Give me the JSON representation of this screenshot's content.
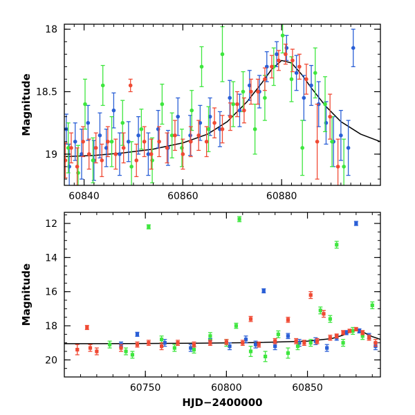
{
  "chart_data": [
    {
      "type": "scatter",
      "title": "",
      "xlabel": "",
      "ylabel": "Magnitude",
      "xlim": [
        60836,
        60900
      ],
      "ylim": [
        19.25,
        17.96
      ],
      "y_inverted": true,
      "x_ticks": [
        60840,
        60860,
        60880
      ],
      "x_tick_labels": [
        "60840",
        "60860",
        "60880"
      ],
      "y_ticks": [
        18,
        18.5,
        19
      ],
      "y_tick_labels": [
        "18",
        "18.5",
        "19"
      ],
      "grid": false,
      "legend": "none",
      "series": [
        {
          "color": "#2a5fd6",
          "points": [
            [
              60836.4,
              18.8,
              0.12
            ],
            [
              60837.0,
              19.1,
              0.18
            ],
            [
              60838.2,
              18.9,
              0.15
            ],
            [
              60839.5,
              19.0,
              0.2
            ],
            [
              60840.8,
              18.75,
              0.14
            ],
            [
              60842.0,
              19.05,
              0.16
            ],
            [
              60843.2,
              18.85,
              0.18
            ],
            [
              60844.5,
              18.95,
              0.15
            ],
            [
              60846.0,
              18.65,
              0.14
            ],
            [
              60847.2,
              19.0,
              0.17
            ],
            [
              60849.0,
              18.9,
              0.16
            ],
            [
              60851.0,
              18.85,
              0.15
            ],
            [
              60853.0,
              19.0,
              0.17
            ],
            [
              60855.0,
              18.8,
              0.15
            ],
            [
              60857.0,
              18.95,
              0.14
            ],
            [
              60859.0,
              18.7,
              0.15
            ],
            [
              60861.5,
              18.85,
              0.16
            ],
            [
              60863.5,
              18.75,
              0.14
            ],
            [
              60865.5,
              18.7,
              0.15
            ],
            [
              60867.5,
              18.8,
              0.14
            ],
            [
              60869.5,
              18.55,
              0.14
            ],
            [
              60871.5,
              18.65,
              0.13
            ],
            [
              60873.5,
              18.45,
              0.12
            ],
            [
              60875.5,
              18.5,
              0.13
            ],
            [
              60877.0,
              18.3,
              0.12
            ],
            [
              60879.0,
              18.2,
              0.1
            ],
            [
              60881.0,
              18.15,
              0.1
            ],
            [
              60883.0,
              18.35,
              0.14
            ],
            [
              60884.5,
              18.55,
              0.18
            ],
            [
              60886.0,
              18.45,
              0.16
            ],
            [
              60887.5,
              18.6,
              0.18
            ],
            [
              60889.0,
              18.75,
              0.17
            ],
            [
              60890.5,
              18.9,
              0.2
            ],
            [
              60892.0,
              18.85,
              0.2
            ],
            [
              60893.5,
              18.95,
              0.22
            ],
            [
              60894.5,
              18.15,
              0.15
            ]
          ]
        },
        {
          "color": "#3ee63e",
          "points": [
            [
              60836.8,
              18.95,
              0.2
            ],
            [
              60838.8,
              19.15,
              0.22
            ],
            [
              60840.2,
              18.6,
              0.2
            ],
            [
              60841.8,
              19.05,
              0.18
            ],
            [
              60843.8,
              18.45,
              0.16
            ],
            [
              60845.6,
              18.9,
              0.2
            ],
            [
              60847.8,
              18.75,
              0.18
            ],
            [
              60849.6,
              19.1,
              0.2
            ],
            [
              60851.6,
              18.8,
              0.16
            ],
            [
              60853.8,
              19.05,
              0.18
            ],
            [
              60855.8,
              18.6,
              0.16
            ],
            [
              60857.8,
              18.85,
              0.18
            ],
            [
              60859.8,
              18.95,
              0.15
            ],
            [
              60861.8,
              18.65,
              0.16
            ],
            [
              60863.8,
              18.3,
              0.16
            ],
            [
              60865.2,
              18.8,
              0.18
            ],
            [
              60868.0,
              18.2,
              0.22
            ],
            [
              60870.2,
              18.6,
              0.18
            ],
            [
              60872.2,
              18.5,
              0.16
            ],
            [
              60874.6,
              18.8,
              0.2
            ],
            [
              60876.6,
              18.55,
              0.18
            ],
            [
              60878.4,
              18.3,
              0.15
            ],
            [
              60880.2,
              18.05,
              0.14
            ],
            [
              60882.0,
              18.4,
              0.18
            ],
            [
              60884.2,
              18.95,
              0.22
            ],
            [
              60886.8,
              18.35,
              0.2
            ],
            [
              60888.8,
              18.6,
              0.22
            ],
            [
              60890.2,
              18.9,
              0.2
            ],
            [
              60892.6,
              19.1,
              0.22
            ]
          ]
        },
        {
          "color": "#f04a34",
          "points": [
            [
              60836.2,
              19.05,
              0.14
            ],
            [
              60837.4,
              18.95,
              0.12
            ],
            [
              60838.6,
              19.1,
              0.15
            ],
            [
              60839.8,
              18.9,
              0.12
            ],
            [
              60841.0,
              19.0,
              0.12
            ],
            [
              60842.4,
              18.95,
              0.12
            ],
            [
              60843.6,
              19.05,
              0.13
            ],
            [
              60844.8,
              18.9,
              0.12
            ],
            [
              60846.4,
              19.0,
              0.12
            ],
            [
              60848.0,
              18.95,
              0.12
            ],
            [
              60849.4,
              18.45,
              0.05
            ],
            [
              60850.6,
              19.05,
              0.13
            ],
            [
              60852.2,
              18.9,
              0.12
            ],
            [
              60853.6,
              19.0,
              0.12
            ],
            [
              60855.2,
              18.9,
              0.12
            ],
            [
              60856.8,
              18.95,
              0.12
            ],
            [
              60858.4,
              18.85,
              0.12
            ],
            [
              60860.0,
              19.0,
              0.12
            ],
            [
              60861.6,
              18.9,
              0.12
            ],
            [
              60863.2,
              18.85,
              0.12
            ],
            [
              60864.8,
              18.9,
              0.12
            ],
            [
              60866.4,
              18.75,
              0.12
            ],
            [
              60868.0,
              18.8,
              0.11
            ],
            [
              60869.6,
              18.7,
              0.11
            ],
            [
              60871.0,
              18.6,
              0.1
            ],
            [
              60872.4,
              18.65,
              0.1
            ],
            [
              60873.8,
              18.5,
              0.1
            ],
            [
              60875.2,
              18.5,
              0.1
            ],
            [
              60876.6,
              18.4,
              0.09
            ],
            [
              60878.0,
              18.3,
              0.09
            ],
            [
              60879.4,
              18.25,
              0.08
            ],
            [
              60880.8,
              18.2,
              0.08
            ],
            [
              60882.2,
              18.25,
              0.09
            ],
            [
              60883.6,
              18.3,
              0.1
            ],
            [
              60885.0,
              18.4,
              0.12
            ],
            [
              60887.2,
              18.9,
              0.3
            ],
            [
              60889.8,
              18.7,
              0.18
            ],
            [
              60891.4,
              19.1,
              0.22
            ]
          ]
        }
      ],
      "model_curve": [
        [
          60836,
          19.02
        ],
        [
          60842,
          19.01
        ],
        [
          60848,
          18.99
        ],
        [
          60854,
          18.96
        ],
        [
          60860,
          18.91
        ],
        [
          60865,
          18.84
        ],
        [
          60869,
          18.74
        ],
        [
          60873,
          18.58
        ],
        [
          60876,
          18.43
        ],
        [
          60878,
          18.32
        ],
        [
          60880,
          18.25
        ],
        [
          60882,
          18.27
        ],
        [
          60884,
          18.36
        ],
        [
          60886,
          18.47
        ],
        [
          60889,
          18.62
        ],
        [
          60892,
          18.74
        ],
        [
          60896,
          18.84
        ],
        [
          60900,
          18.9
        ]
      ]
    },
    {
      "type": "scatter",
      "title": "",
      "xlabel": "HJD−2400000",
      "ylabel": "Magnitude",
      "xlim": [
        60700,
        60895
      ],
      "ylim": [
        21.0,
        11.35
      ],
      "y_inverted": true,
      "x_ticks": [
        60750,
        60800,
        60850
      ],
      "x_tick_labels": [
        "60750",
        "60800",
        "60850"
      ],
      "y_ticks": [
        12,
        14,
        16,
        18,
        20
      ],
      "y_tick_labels": [
        "12",
        "14",
        "16",
        "18",
        "20"
      ],
      "grid": false,
      "legend": "none",
      "series": [
        {
          "color": "#2a5fd6",
          "points": [
            [
              60735,
              19.1,
              0.15
            ],
            [
              60745,
              18.5,
              0.12
            ],
            [
              60762,
              19.0,
              0.2
            ],
            [
              60778,
              19.3,
              0.2
            ],
            [
              60790,
              18.9,
              0.15
            ],
            [
              60802,
              19.2,
              0.2
            ],
            [
              60812,
              18.8,
              0.2
            ],
            [
              60818,
              19.1,
              0.2
            ],
            [
              60823,
              15.95,
              0.12
            ],
            [
              60830,
              19.2,
              0.2
            ],
            [
              60838,
              18.6,
              0.15
            ],
            [
              60845,
              19.0,
              0.2
            ],
            [
              60855,
              18.9,
              0.2
            ],
            [
              60862,
              19.3,
              0.2
            ],
            [
              60868,
              18.7,
              0.15
            ],
            [
              60874,
              18.4,
              0.12
            ],
            [
              60880,
              12.0,
              0.12
            ],
            [
              60882,
              18.3,
              0.12
            ],
            [
              60888,
              18.6,
              0.15
            ],
            [
              60892,
              19.2,
              0.2
            ]
          ]
        },
        {
          "color": "#3ee63e",
          "points": [
            [
              60728,
              19.1,
              0.2
            ],
            [
              60738,
              19.5,
              0.2
            ],
            [
              60742,
              19.7,
              0.2
            ],
            [
              60752,
              12.2,
              0.12
            ],
            [
              60760,
              18.8,
              0.2
            ],
            [
              60768,
              19.3,
              0.2
            ],
            [
              60780,
              19.4,
              0.2
            ],
            [
              60790,
              18.6,
              0.2
            ],
            [
              60800,
              19.0,
              0.2
            ],
            [
              60806,
              18.0,
              0.15
            ],
            [
              60808,
              11.75,
              0.15
            ],
            [
              60815,
              19.5,
              0.3
            ],
            [
              60824,
              19.8,
              0.3
            ],
            [
              60832,
              18.5,
              0.2
            ],
            [
              60838,
              19.6,
              0.3
            ],
            [
              60844,
              19.2,
              0.2
            ],
            [
              60852,
              19.0,
              0.2
            ],
            [
              60858,
              17.1,
              0.2
            ],
            [
              60864,
              17.6,
              0.2
            ],
            [
              60868,
              13.25,
              0.2
            ],
            [
              60872,
              19.0,
              0.2
            ],
            [
              60878,
              18.3,
              0.2
            ],
            [
              60884,
              18.6,
              0.2
            ],
            [
              60890,
              16.8,
              0.2
            ]
          ]
        },
        {
          "color": "#f04a34",
          "points": [
            [
              60708,
              19.4,
              0.3
            ],
            [
              60714,
              18.1,
              0.12
            ],
            [
              60716,
              19.3,
              0.2
            ],
            [
              60720,
              19.5,
              0.2
            ],
            [
              60735,
              19.3,
              0.2
            ],
            [
              60745,
              19.1,
              0.15
            ],
            [
              60752,
              19.0,
              0.15
            ],
            [
              60760,
              19.2,
              0.2
            ],
            [
              60770,
              19.0,
              0.15
            ],
            [
              60780,
              19.1,
              0.15
            ],
            [
              60790,
              19.0,
              0.15
            ],
            [
              60800,
              18.95,
              0.15
            ],
            [
              60810,
              19.0,
              0.15
            ],
            [
              60815,
              17.6,
              0.15
            ],
            [
              60820,
              19.1,
              0.15
            ],
            [
              60830,
              18.9,
              0.15
            ],
            [
              60838,
              17.65,
              0.15
            ],
            [
              60843,
              18.9,
              0.15
            ],
            [
              60848,
              19.0,
              0.15
            ],
            [
              60852,
              16.2,
              0.2
            ],
            [
              60856,
              18.9,
              0.15
            ],
            [
              60860,
              17.3,
              0.2
            ],
            [
              60864,
              18.7,
              0.15
            ],
            [
              60868,
              18.6,
              0.12
            ],
            [
              60872,
              18.4,
              0.12
            ],
            [
              60876,
              18.3,
              0.1
            ],
            [
              60880,
              18.2,
              0.1
            ],
            [
              60884,
              18.4,
              0.12
            ],
            [
              60888,
              18.7,
              0.15
            ],
            [
              60892,
              19.0,
              0.2
            ]
          ]
        }
      ],
      "model_curve": [
        [
          60700,
          19.05
        ],
        [
          60740,
          19.04
        ],
        [
          60780,
          19.02
        ],
        [
          60820,
          18.98
        ],
        [
          60850,
          18.9
        ],
        [
          60865,
          18.75
        ],
        [
          60872,
          18.55
        ],
        [
          60878,
          18.3
        ],
        [
          60881,
          18.25
        ],
        [
          60885,
          18.4
        ],
        [
          60889,
          18.6
        ],
        [
          60895,
          18.8
        ]
      ]
    }
  ]
}
